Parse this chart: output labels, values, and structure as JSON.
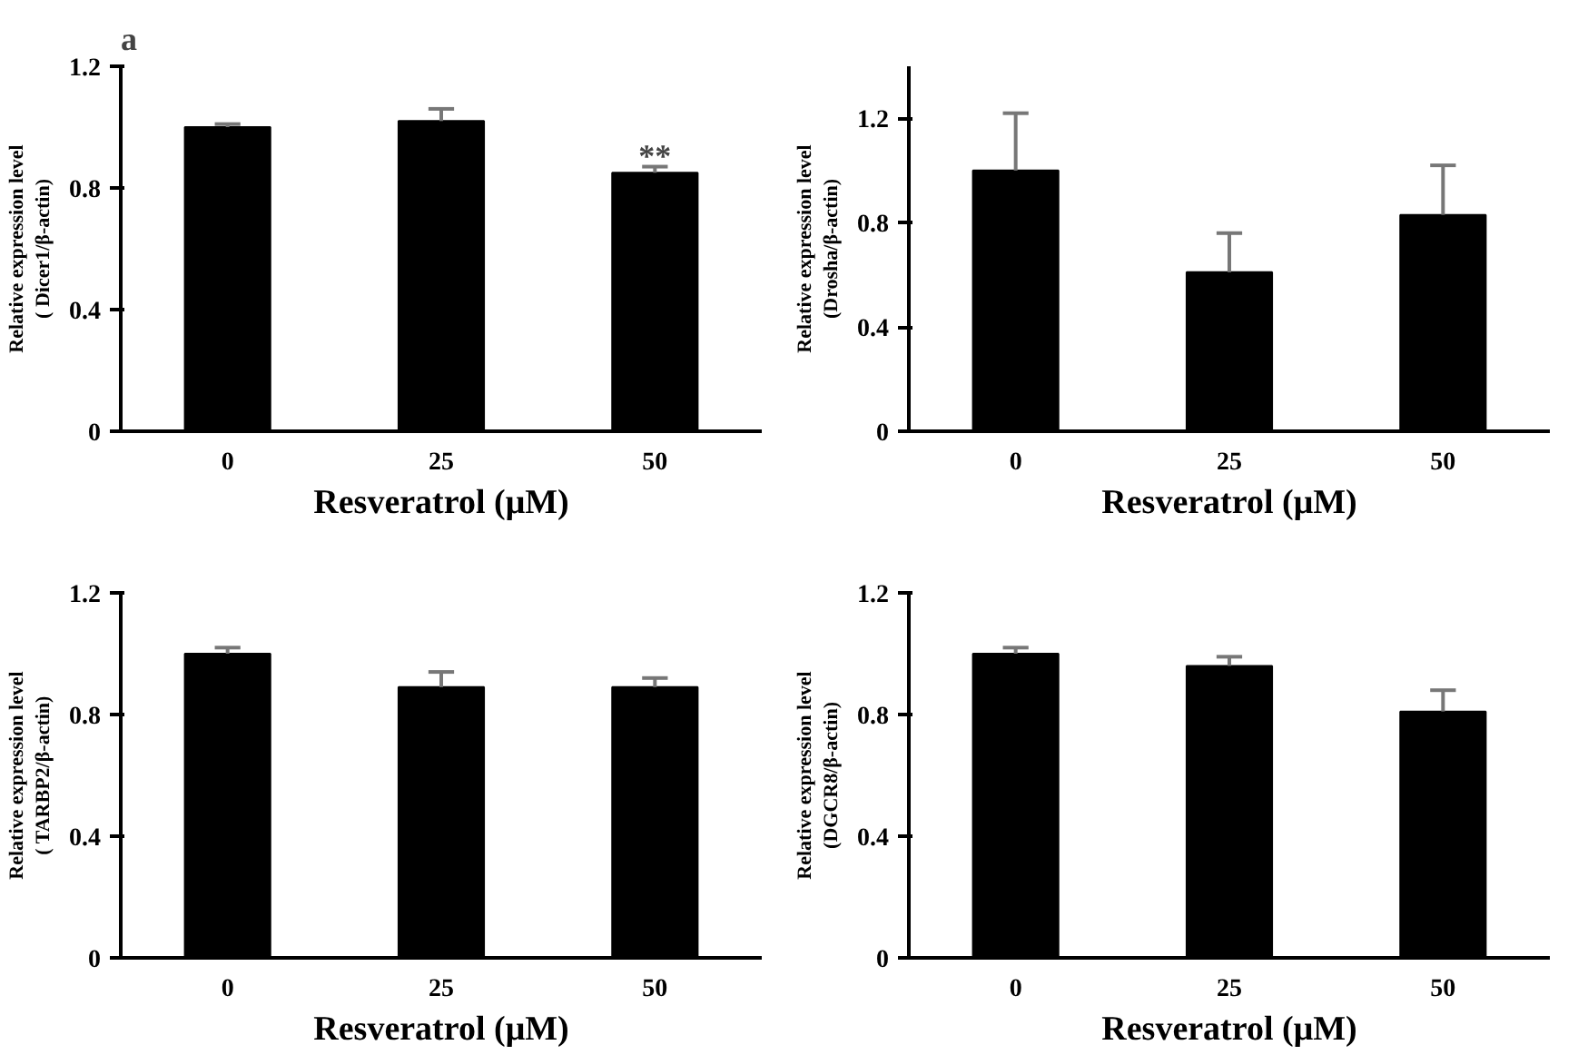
{
  "chart_data": [
    {
      "type": "bar",
      "categories": [
        "0",
        "25",
        "50"
      ],
      "values": [
        1.0,
        1.02,
        0.85
      ],
      "errors": [
        [
          1.0,
          1.01
        ],
        [
          1.02,
          1.06
        ],
        [
          0.85,
          0.87
        ]
      ],
      "color": "#000000",
      "xlabel": "Resveratrol (μM)",
      "ylabel": "Relative expression level\n( Dicer1/β-actin)",
      "ylim": [
        0,
        1.2
      ],
      "yticks": [
        0,
        0.4,
        0.8,
        1.2
      ],
      "annotations": [
        "a",
        {
          "text": "**",
          "x": "50",
          "y": 0.87
        }
      ]
    },
    {
      "type": "bar",
      "categories": [
        "0",
        "25",
        "50"
      ],
      "values": [
        1.0,
        0.61,
        0.83
      ],
      "errors": [
        [
          1.0,
          1.22
        ],
        [
          0.61,
          0.76
        ],
        [
          0.83,
          1.02
        ]
      ],
      "color": "#000000",
      "xlabel": "Resveratrol (μM)",
      "ylabel": "Relative expression level\n(Drosha/β-actin)",
      "ylim": [
        0,
        1.4
      ],
      "yticks": [
        0,
        0.4,
        0.8,
        1.2
      ]
    },
    {
      "type": "bar",
      "categories": [
        "0",
        "25",
        "50"
      ],
      "values": [
        1.0,
        0.89,
        0.89
      ],
      "errors": [
        [
          1.0,
          1.02
        ],
        [
          0.89,
          0.94
        ],
        [
          0.89,
          0.92
        ]
      ],
      "color": "#000000",
      "xlabel": "Resveratrol (μM)",
      "ylabel": "Relative expression level\n( TARBP2/β-actin)",
      "ylim": [
        0,
        1.2
      ],
      "yticks": [
        0,
        0.4,
        0.8,
        1.2
      ]
    },
    {
      "type": "bar",
      "categories": [
        "0",
        "25",
        "50"
      ],
      "values": [
        1.0,
        0.96,
        0.81
      ],
      "errors": [
        [
          1.0,
          1.02
        ],
        [
          0.96,
          0.99
        ],
        [
          0.81,
          0.88
        ]
      ],
      "color": "#000000",
      "xlabel": "Resveratrol (μM)",
      "ylabel": "Relative expression level\n(DGCR8/β-actin)",
      "ylim": [
        0,
        1.2
      ],
      "yticks": [
        0,
        0.4,
        0.8,
        1.2
      ]
    }
  ]
}
